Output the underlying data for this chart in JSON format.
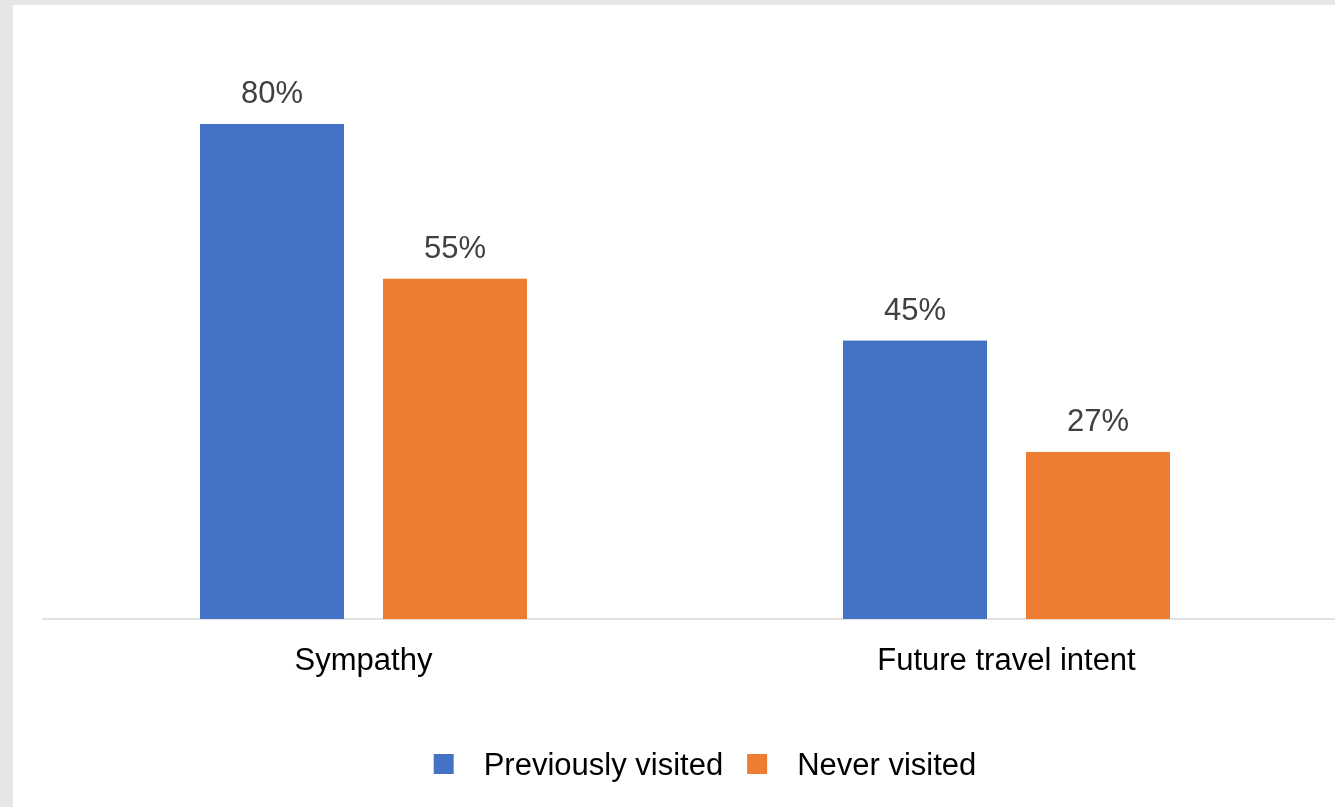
{
  "chart_data": {
    "type": "bar",
    "categories": [
      "Sympathy",
      "Future travel intent"
    ],
    "series": [
      {
        "name": "Previously visited",
        "color": "#4472c4",
        "values": [
          80,
          45
        ],
        "value_labels": [
          "80%",
          "45%"
        ]
      },
      {
        "name": "Never visited",
        "color": "#ed7d31",
        "values": [
          55,
          27
        ],
        "value_labels": [
          "55%",
          "27%"
        ]
      }
    ],
    "legend": "bottom"
  }
}
